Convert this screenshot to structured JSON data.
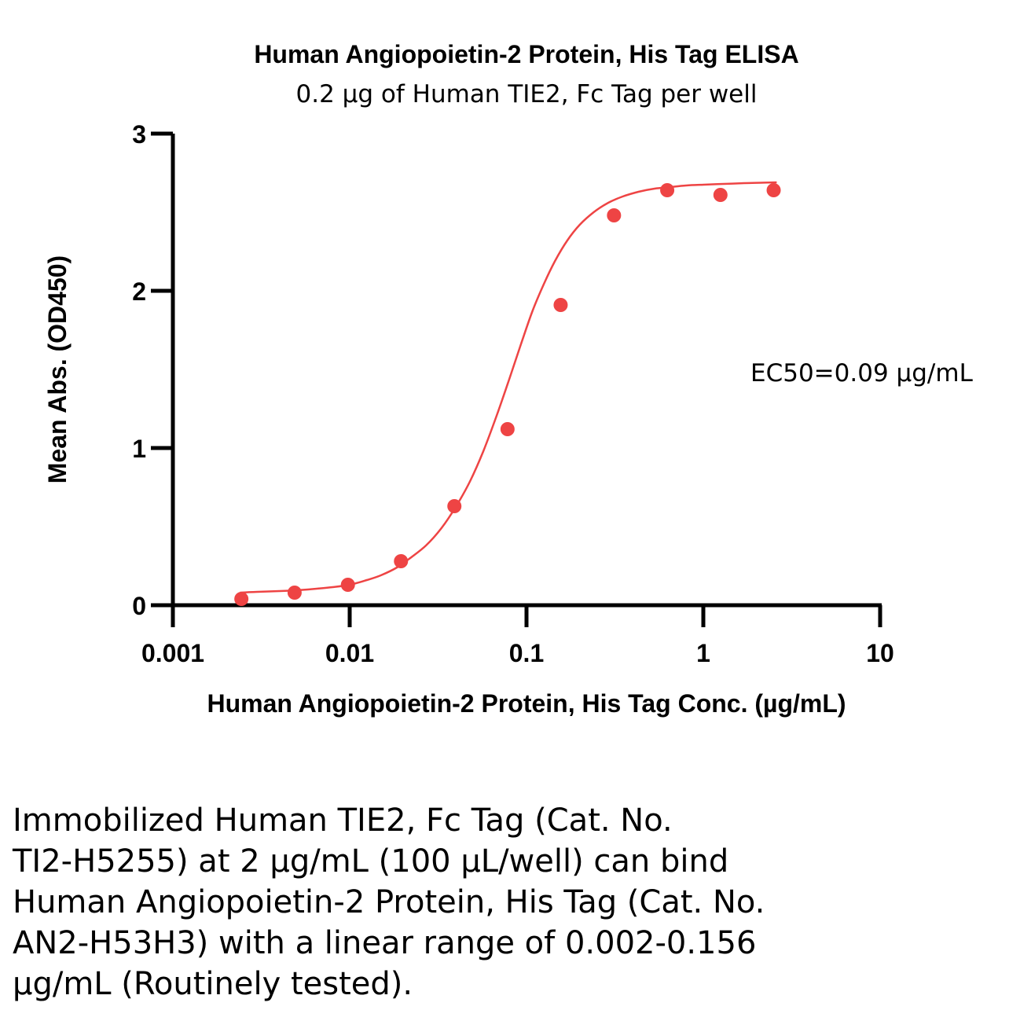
{
  "chart_data": {
    "type": "scatter",
    "title": "Human Angiopoietin-2 Protein, His Tag ELISA",
    "subtitle": "0.2 µg of Human TIE2, Fc Tag per well",
    "xlabel": "Human Angiopoietin-2 Protein, His Tag Conc. (µg/mL)",
    "ylabel": "Mean Abs. (OD450)",
    "xscale": "log",
    "xlim": [
      0.001,
      10
    ],
    "ylim": [
      0,
      3
    ],
    "xticks": [
      0.001,
      0.01,
      0.1,
      1,
      10
    ],
    "xtick_labels": [
      "0.001",
      "0.01",
      "0.1",
      "1",
      "10"
    ],
    "yticks": [
      0,
      1,
      2,
      3
    ],
    "ytick_labels": [
      "0",
      "1",
      "2",
      "3"
    ],
    "annotation": "EC50=0.09 µg/mL",
    "grid": false,
    "color": "#EE4444",
    "points": {
      "x": [
        0.00244,
        0.00488,
        0.00977,
        0.0195,
        0.0391,
        0.0781,
        0.156,
        0.3125,
        0.625,
        1.25,
        2.5
      ],
      "y": [
        0.04,
        0.08,
        0.13,
        0.28,
        0.63,
        1.12,
        1.91,
        2.48,
        2.64,
        2.61,
        2.64
      ]
    },
    "fit_curve": {
      "x": [
        0.0024,
        0.003,
        0.004,
        0.005,
        0.0065,
        0.008,
        0.01,
        0.0125,
        0.015,
        0.0185,
        0.022,
        0.027,
        0.033,
        0.04,
        0.048,
        0.057,
        0.068,
        0.08,
        0.093,
        0.108,
        0.125,
        0.145,
        0.17,
        0.2,
        0.24,
        0.29,
        0.35,
        0.43,
        0.53,
        0.65,
        0.8,
        1.0,
        1.3,
        1.7,
        2.2,
        2.6
      ],
      "y": [
        0.08,
        0.085,
        0.09,
        0.095,
        0.105,
        0.115,
        0.13,
        0.16,
        0.19,
        0.24,
        0.3,
        0.38,
        0.49,
        0.63,
        0.79,
        0.98,
        1.21,
        1.44,
        1.66,
        1.87,
        2.04,
        2.19,
        2.32,
        2.42,
        2.5,
        2.56,
        2.6,
        2.63,
        2.65,
        2.66,
        2.67,
        2.675,
        2.68,
        2.685,
        2.688,
        2.69
      ]
    }
  },
  "caption": "Immobilized Human TIE2, Fc Tag (Cat. No.\nTI2-H5255) at 2 µg/mL (100 µL/well) can bind\nHuman Angiopoietin-2 Protein, His Tag (Cat. No.\nAN2-H53H3) with a linear range of 0.002-0.156\nµg/mL (Routinely tested)."
}
